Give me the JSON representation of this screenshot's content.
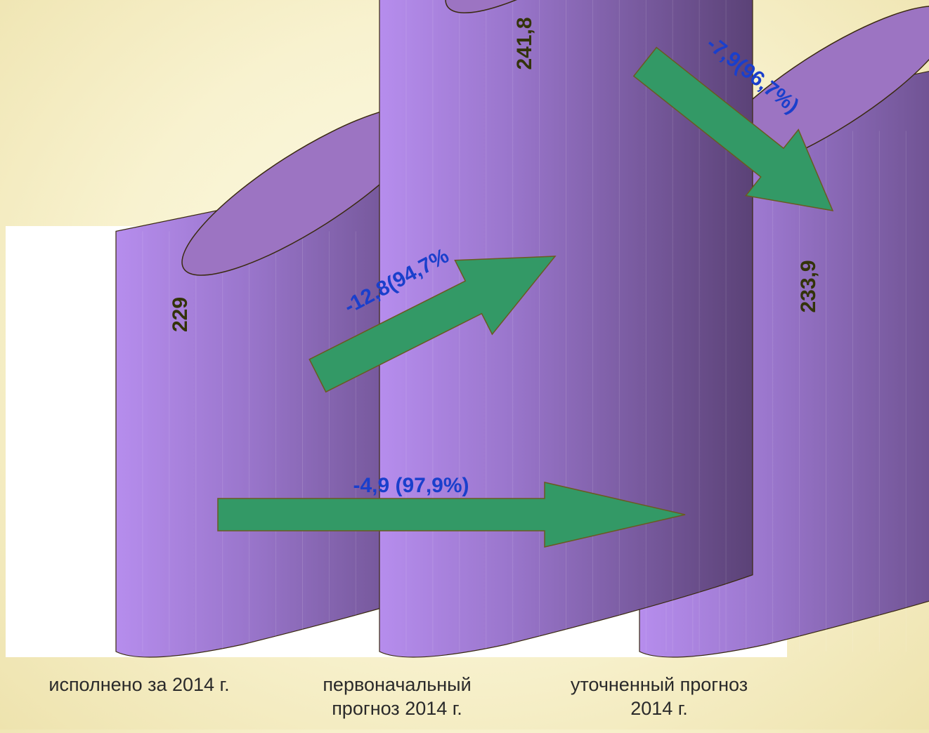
{
  "chart_data": {
    "type": "bar",
    "categories": [
      "исполнено за 2014 г.",
      "первоначальный\nпрогноз 2014 г.",
      "уточненный прогноз\n2014 г."
    ],
    "values": [
      229,
      241.8,
      233.9
    ],
    "value_labels": [
      "229",
      "241,8",
      "233,9"
    ],
    "annotations": [
      {
        "from": "исполнено за 2014 г.",
        "to": "первоначальный\nпрогноз 2014 г.",
        "text": "-12,8(94,7%"
      },
      {
        "from": "первоначальный\nпрогноз 2014 г.",
        "to": "уточненный прогноз\n2014 г.",
        "text": "-7,9(96,7%)"
      },
      {
        "from": "исполнено за 2014 г.",
        "to": "уточненный прогноз\n2014 г.",
        "text": "-4,9 (97,9%)"
      }
    ],
    "title": "",
    "xlabel": "",
    "ylabel": "",
    "grid": false,
    "legend": "none"
  },
  "colors": {
    "bar_top": "#9c74c2",
    "bar_light": "#b38ae6",
    "bar_dark": "#5d4478",
    "arrow": "#339966",
    "value_text": "#33330a",
    "annotation_text": "#1a3fcc",
    "plot_bg": "#ffffff"
  }
}
